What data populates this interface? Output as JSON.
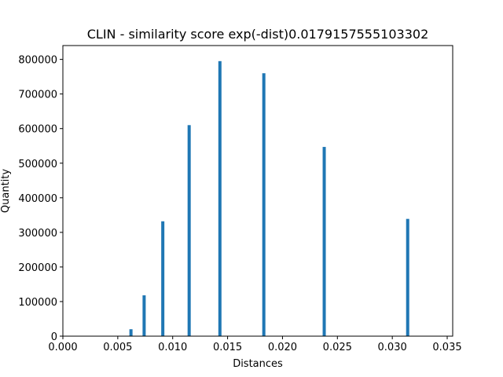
{
  "chart_data": {
    "type": "bar",
    "title": "CLIN - similarity score exp(-dist)0.0179157555103302",
    "xlabel": "Distances",
    "ylabel": "Quantity",
    "xlim": [
      0.0,
      0.0355
    ],
    "ylim": [
      0,
      840000
    ],
    "x_ticks": [
      "0.000",
      "0.005",
      "0.010",
      "0.015",
      "0.020",
      "0.025",
      "0.030",
      "0.035"
    ],
    "y_ticks": [
      "0",
      "100000",
      "200000",
      "300000",
      "400000",
      "500000",
      "600000",
      "700000",
      "800000"
    ],
    "bar_color": "#1f77b4",
    "grid": false,
    "legend": "none",
    "x": [
      0.0062,
      0.0074,
      0.0091,
      0.0115,
      0.0143,
      0.0183,
      0.0238,
      0.0314
    ],
    "values": [
      20000,
      118000,
      332000,
      610000,
      795000,
      760000,
      547000,
      339000
    ]
  }
}
